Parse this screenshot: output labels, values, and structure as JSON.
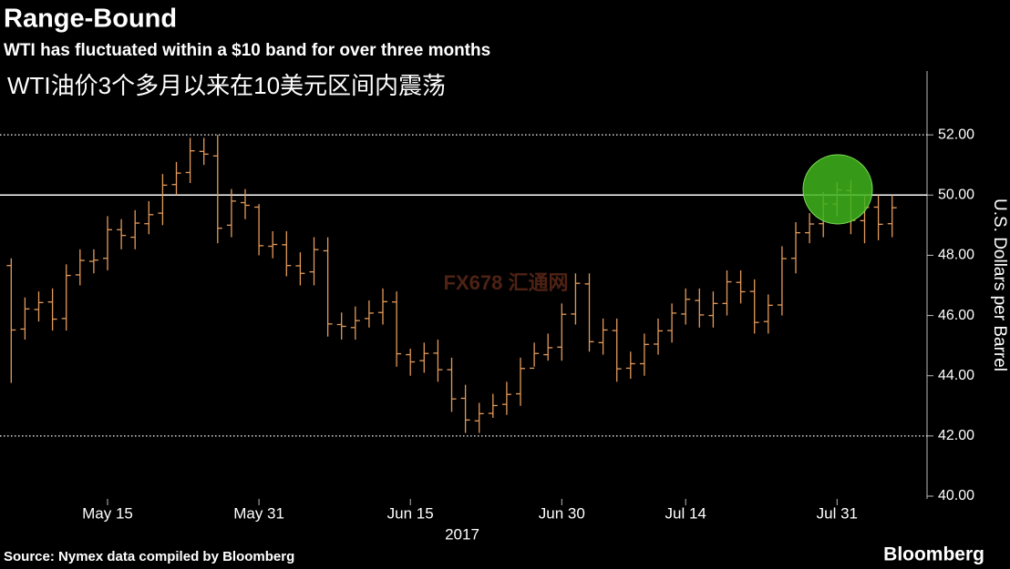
{
  "chart_data": {
    "type": "ohlc",
    "title": "Range-Bound",
    "subtitle": "WTI has fluctuated within a $10 band for over three months",
    "subtitle_cn": "WTI油价3个多月以来在10美元区间内震荡",
    "y_label": "U.S. Dollars per Barrel",
    "x_sublabel": "2017",
    "source": "Source: Nymex data compiled by Bloomberg",
    "brand": "Bloomberg",
    "watermark": "FX678 汇通网",
    "color": "#e39a5a",
    "ylim": [
      40,
      54
    ],
    "yticks": [
      {
        "value": 40,
        "label": "40.00"
      },
      {
        "value": 42,
        "label": "42.00"
      },
      {
        "value": 44,
        "label": "44.00"
      },
      {
        "value": 46,
        "label": "46.00"
      },
      {
        "value": 48,
        "label": "48.00"
      },
      {
        "value": 50,
        "label": "50.00"
      },
      {
        "value": 52,
        "label": "52.00"
      }
    ],
    "reference_lines": [
      {
        "value": 50,
        "style": "solid"
      },
      {
        "value": 52,
        "style": "dotted"
      },
      {
        "value": 42,
        "style": "dotted"
      }
    ],
    "categories": [
      null,
      null,
      null,
      null,
      null,
      null,
      null,
      "May 15",
      null,
      null,
      null,
      null,
      null,
      null,
      null,
      null,
      null,
      null,
      "May 31",
      null,
      null,
      null,
      null,
      null,
      null,
      null,
      null,
      null,
      null,
      "Jun 15",
      null,
      null,
      null,
      null,
      null,
      null,
      null,
      null,
      null,
      null,
      "Jun 30",
      null,
      null,
      null,
      null,
      null,
      null,
      null,
      null,
      "Jul 14",
      null,
      null,
      null,
      null,
      null,
      null,
      null,
      null,
      null,
      null,
      "Jul 31",
      null,
      null,
      null,
      null
    ],
    "open": [
      47.66,
      45.55,
      46.2,
      46.45,
      45.9,
      47.35,
      47.8,
      47.9,
      48.85,
      48.6,
      49.05,
      49.4,
      50.35,
      50.75,
      51.45,
      51.3,
      49.0,
      49.75,
      49.6,
      48.3,
      48.35,
      47.65,
      47.45,
      48.15,
      45.7,
      45.6,
      45.9,
      46.1,
      46.45,
      44.7,
      44.5,
      44.75,
      44.2,
      43.25,
      42.5,
      42.75,
      43.05,
      43.4,
      44.25,
      44.7,
      44.95,
      46.05,
      47.05,
      45.1,
      45.5,
      44.25,
      44.4,
      45.05,
      45.5,
      46.05,
      46.5,
      46.0,
      46.4,
      47.1,
      46.8,
      45.8,
      46.35,
      47.9,
      48.75,
      49.05,
      49.7,
      50.15,
      49.15,
      49.6,
      49.05
    ],
    "high": [
      47.9,
      46.6,
      46.8,
      46.9,
      47.7,
      48.2,
      48.2,
      49.3,
      49.2,
      49.5,
      49.8,
      50.7,
      51.1,
      51.9,
      51.9,
      52.0,
      50.2,
      50.2,
      49.7,
      48.8,
      48.8,
      48.1,
      48.6,
      48.6,
      46.1,
      46.3,
      46.5,
      46.9,
      46.8,
      44.9,
      45.1,
      45.2,
      44.6,
      43.7,
      43.1,
      43.4,
      43.8,
      44.6,
      45.1,
      45.4,
      46.4,
      47.4,
      47.4,
      45.9,
      45.9,
      44.8,
      45.4,
      45.9,
      46.4,
      46.9,
      46.9,
      46.8,
      47.5,
      47.5,
      47.2,
      46.7,
      48.3,
      49.1,
      49.4,
      50.1,
      50.43,
      50.5,
      50.0,
      50.0,
      50.0
    ],
    "low": [
      43.76,
      45.2,
      45.8,
      45.5,
      45.5,
      47.0,
      47.4,
      47.5,
      48.2,
      48.2,
      48.7,
      49.0,
      50.0,
      50.4,
      51.0,
      48.4,
      48.6,
      49.2,
      48.0,
      47.9,
      47.3,
      47.0,
      47.0,
      45.3,
      45.2,
      45.2,
      45.6,
      45.7,
      44.3,
      44.0,
      44.1,
      43.8,
      42.8,
      42.1,
      42.1,
      42.6,
      42.7,
      43.0,
      44.3,
      44.5,
      44.5,
      45.7,
      44.8,
      44.7,
      43.8,
      43.9,
      44.0,
      44.7,
      45.1,
      45.7,
      45.6,
      45.6,
      46.0,
      46.4,
      45.4,
      45.4,
      46.0,
      47.4,
      48.4,
      48.6,
      49.3,
      48.7,
      48.4,
      48.5,
      48.6
    ],
    "close": [
      45.52,
      46.22,
      46.43,
      45.88,
      47.33,
      47.83,
      47.84,
      48.85,
      48.66,
      49.07,
      49.35,
      50.33,
      50.73,
      51.47,
      51.36,
      48.9,
      49.8,
      49.66,
      48.32,
      48.36,
      47.66,
      47.4,
      48.19,
      45.72,
      45.64,
      45.83,
      46.08,
      46.46,
      44.73,
      44.46,
      44.74,
      44.2,
      43.23,
      42.53,
      42.74,
      43.01,
      43.38,
      44.24,
      44.74,
      44.93,
      46.04,
      47.07,
      45.13,
      45.52,
      44.23,
      44.4,
      45.04,
      45.49,
      46.08,
      46.54,
      46.02,
      46.4,
      47.12,
      46.79,
      45.77,
      46.34,
      47.89,
      48.75,
      49.04,
      49.71,
      50.17,
      49.16,
      49.59,
      49.03,
      49.58
    ]
  }
}
